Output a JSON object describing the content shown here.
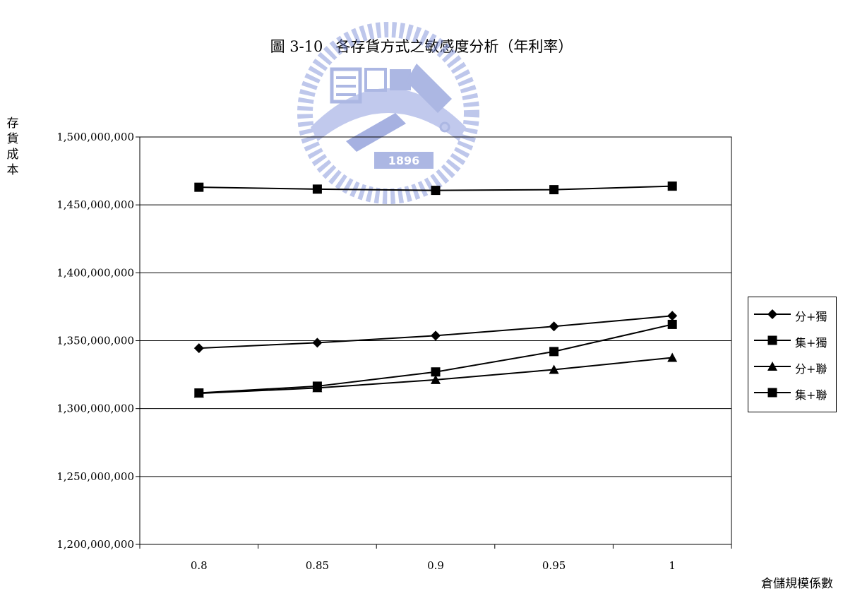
{
  "title": {
    "figure_no": "圖 3-10",
    "text": "各存貨方式之敏感度分析（年利率）"
  },
  "watermark": {
    "text": "1896",
    "letters": "E S A"
  },
  "chart_data": {
    "type": "line",
    "ylabel": "存貨成本",
    "xlabel": "倉儲規模係數",
    "x": [
      0.8,
      0.85,
      0.9,
      0.95,
      1
    ],
    "x_tick_labels": [
      "0.8",
      "0.85",
      "0.9",
      "0.95",
      "1"
    ],
    "ylim": [
      1200000000,
      1500000000
    ],
    "y_tick_labels": [
      "1,500,000,000",
      "1,450,000,000",
      "1,400,000,000",
      "1,350,000,000",
      "1,300,000,000",
      "1,250,000,000",
      "1,200,000,000"
    ],
    "y_ticks": [
      1500000000,
      1450000000,
      1400000000,
      1350000000,
      1300000000,
      1250000000,
      1200000000
    ],
    "grid": true,
    "legend_position": "right",
    "series": [
      {
        "name": "分+獨",
        "marker": "diamond",
        "values": [
          1344500000,
          1348500000,
          1353700000,
          1360500000,
          1368300000
        ]
      },
      {
        "name": "集+獨",
        "marker": "square",
        "values": [
          1311500000,
          1316500000,
          1327000000,
          1342000000,
          1362000000
        ]
      },
      {
        "name": "分+聯",
        "marker": "triangle",
        "values": [
          1311200000,
          1315200000,
          1321200000,
          1328700000,
          1337500000
        ]
      },
      {
        "name": "集+聯",
        "marker": "square",
        "values": [
          1463000000,
          1461600000,
          1460700000,
          1461200000,
          1463800000
        ]
      }
    ]
  }
}
